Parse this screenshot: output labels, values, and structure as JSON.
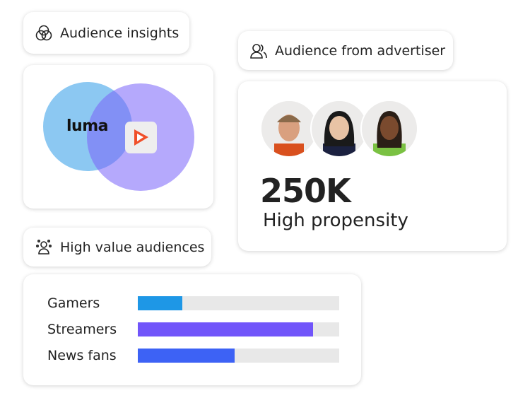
{
  "insights_pill": {
    "label": "Audience insights",
    "icon": "venn-icon"
  },
  "venn": {
    "left_brand": "luma",
    "right_brand": "play-app-icon",
    "colors": {
      "left": "#8cc8f2",
      "right": "#b5a9fc",
      "overlap": "#8290f5"
    }
  },
  "advertiser_pill": {
    "label": "Audience from advertiser",
    "icon": "users-icon"
  },
  "audience_card": {
    "value": "250K",
    "label": "High propensity",
    "avatars": [
      "person-1",
      "person-2",
      "person-3"
    ]
  },
  "high_value_pill": {
    "label": "High value audiences",
    "icon": "audience-group-icon"
  },
  "bars": [
    {
      "label": "Gamers",
      "percent": 22,
      "color": "#1e97e6"
    },
    {
      "label": "Streamers",
      "percent": 87,
      "color": "#7155fa"
    },
    {
      "label": "News fans",
      "percent": 48,
      "color": "#3d62f5"
    }
  ]
}
